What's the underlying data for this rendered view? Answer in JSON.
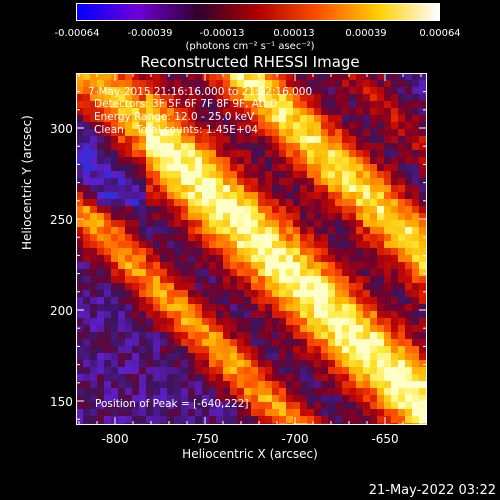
{
  "colorbar": {
    "ticks": [
      "-0.00064",
      "-0.00039",
      "-0.00013",
      "0.00013",
      "0.00039",
      "0.00064"
    ],
    "unit": "(photons cm⁻² s⁻¹ asec⁻²)",
    "colors": [
      "#0000ff",
      "#7000d8",
      "#300030",
      "#b00000",
      "#ff5000",
      "#ffd000",
      "#ffffff"
    ]
  },
  "title": "Reconstructed RHESSI Image",
  "info": {
    "line1": "7-May-2015 21:16:16.000 to 21:22:16.000",
    "line2": "Detectors: 3F 5F 6F 7F 8F 9F, Att 0",
    "line3": "Energy Range: 12.0 - 25.0 keV",
    "line4a": "Clean",
    "line4b": "Total counts: 1.45E+04",
    "peak": "Position of Peak = [-640,222]"
  },
  "axes": {
    "xlabel": "Heliocentric X (arcsec)",
    "ylabel": "Heliocentric Y (arcsec)",
    "xticks": [
      "-800",
      "-750",
      "-700",
      "-650"
    ],
    "yticks": [
      "300",
      "250",
      "200",
      "150"
    ]
  },
  "timestamp": "21-May-2022 03:22"
}
